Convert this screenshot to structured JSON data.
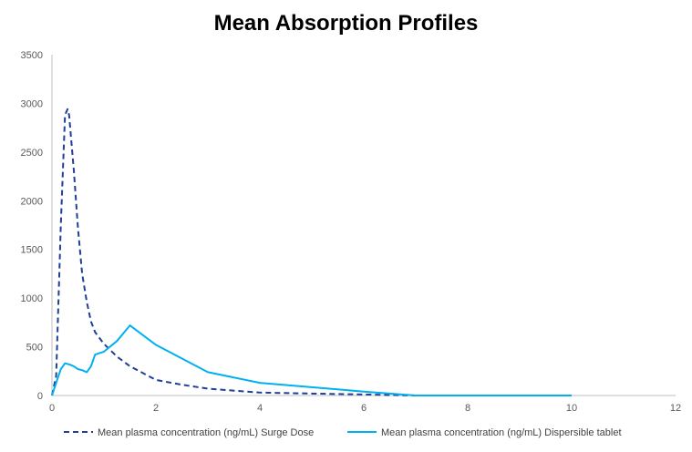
{
  "chart_data": {
    "type": "line",
    "title": "Mean Absorption Profiles",
    "xlabel": "",
    "ylabel": "",
    "xlim": [
      0,
      12
    ],
    "ylim": [
      0,
      3500
    ],
    "x_ticks": [
      0,
      2,
      4,
      6,
      8,
      10,
      12
    ],
    "y_ticks": [
      0,
      500,
      1000,
      1500,
      2000,
      2500,
      3000,
      3500
    ],
    "grid": false,
    "legend_position": "bottom",
    "series": [
      {
        "name": "Mean plasma concentration (ng/mL) Surge Dose",
        "color": "#1f3f99",
        "style": "dashed",
        "x": [
          0,
          0.08,
          0.17,
          0.25,
          0.3,
          0.33,
          0.42,
          0.5,
          0.58,
          0.67,
          0.75,
          0.83,
          1.0,
          1.25,
          1.5,
          1.75,
          2.0,
          2.5,
          3.0,
          4.0,
          6.0,
          7.0
        ],
        "y": [
          0,
          200,
          1750,
          2880,
          2940,
          2880,
          2320,
          1720,
          1250,
          960,
          760,
          650,
          530,
          400,
          300,
          230,
          160,
          110,
          70,
          30,
          10,
          0
        ]
      },
      {
        "name": "Mean plasma concentration (ng/mL) Dispersible tablet",
        "color": "#00b0f0",
        "style": "solid",
        "x": [
          0,
          0.08,
          0.17,
          0.25,
          0.33,
          0.42,
          0.5,
          0.58,
          0.67,
          0.75,
          0.83,
          1.0,
          1.25,
          1.5,
          2.0,
          3.0,
          4.0,
          6.0,
          7.0,
          10.0
        ],
        "y": [
          0,
          130,
          270,
          330,
          320,
          300,
          270,
          260,
          240,
          300,
          420,
          450,
          560,
          720,
          520,
          240,
          130,
          40,
          0,
          0
        ]
      }
    ]
  }
}
